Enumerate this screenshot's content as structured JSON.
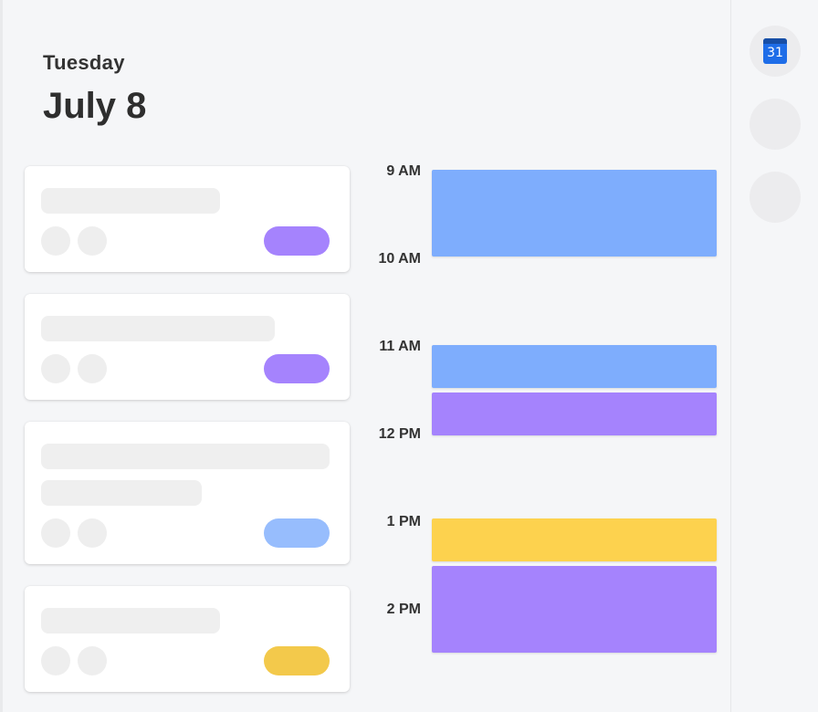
{
  "header": {
    "day_name": "Tuesday",
    "date": "July 8"
  },
  "cards": [
    {
      "pill_color": "#a583fd"
    },
    {
      "pill_color": "#a583fd"
    },
    {
      "pill_color": "#97bdfd"
    },
    {
      "pill_color": "#f3c94b"
    }
  ],
  "timeline": {
    "labels": [
      "9 AM",
      "10 AM",
      "11 AM",
      "12 PM",
      "1 PM",
      "2 PM"
    ],
    "events": [
      {
        "color": "#7eadfd"
      },
      {
        "color": "#7eadfd"
      },
      {
        "color": "#a583fd"
      },
      {
        "color": "#fdd24e"
      },
      {
        "color": "#a583fd"
      }
    ]
  },
  "rail": {
    "calendar_icon": {
      "icon": "google-calendar-icon",
      "number": "31"
    },
    "buttons": [
      "placeholder",
      "placeholder"
    ]
  }
}
